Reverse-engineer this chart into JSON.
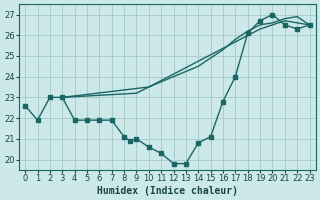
{
  "xlabel": "Humidex (Indice chaleur)",
  "xlim": [
    -0.5,
    23.5
  ],
  "ylim": [
    19.5,
    27.5
  ],
  "xticks": [
    0,
    1,
    2,
    3,
    4,
    5,
    6,
    7,
    8,
    9,
    10,
    11,
    12,
    13,
    14,
    15,
    16,
    17,
    18,
    19,
    20,
    21,
    22,
    23
  ],
  "yticks": [
    20,
    21,
    22,
    23,
    24,
    25,
    26,
    27
  ],
  "bg_color": "#cce8e8",
  "grid_color": "#aacccc",
  "line_color": "#1a6666",
  "line1_x": [
    0,
    1,
    2,
    3,
    4,
    5,
    6,
    7,
    8,
    8.5,
    9,
    10,
    11,
    12,
    13,
    14,
    15,
    16,
    17,
    18,
    19,
    20,
    21,
    22,
    23
  ],
  "line1_y": [
    22.6,
    21.9,
    23.0,
    23.0,
    21.9,
    21.9,
    21.9,
    21.9,
    21.1,
    20.9,
    21.0,
    20.6,
    20.3,
    19.8,
    19.8,
    20.8,
    21.1,
    22.8,
    24.0,
    26.1,
    26.7,
    27.0,
    26.5,
    26.3,
    26.5
  ],
  "line2_x": [
    3,
    9,
    10,
    14,
    16,
    17,
    18,
    19,
    20,
    21,
    22,
    23
  ],
  "line2_y": [
    23.0,
    23.2,
    23.5,
    24.5,
    25.3,
    25.8,
    26.2,
    26.5,
    26.6,
    26.8,
    26.9,
    26.5
  ],
  "line3_x": [
    3,
    10,
    19,
    20,
    21,
    22,
    23
  ],
  "line3_y": [
    23.0,
    23.5,
    26.3,
    26.5,
    26.7,
    26.6,
    26.5
  ]
}
